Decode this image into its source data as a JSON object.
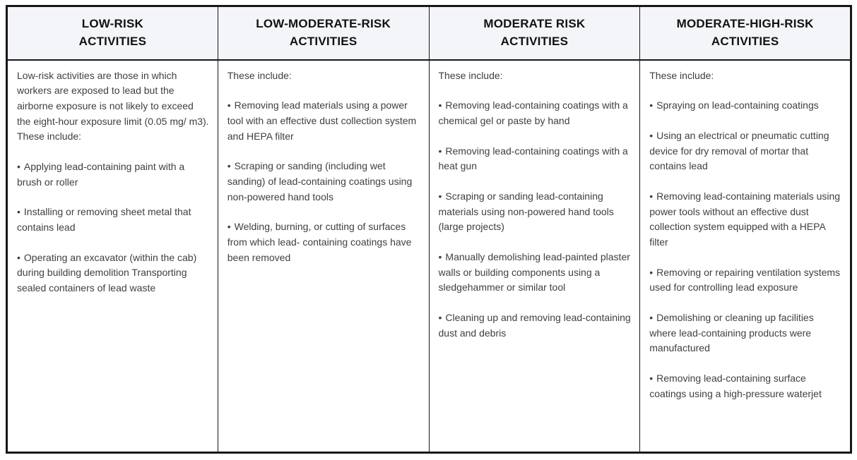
{
  "glyphs": {
    "bullet": "•"
  },
  "colors": {
    "header_bg": "#f4f5f8",
    "border": "#17171a",
    "header_text": "#111214",
    "body_text": "#3d3f42",
    "page_bg": "#ffffff"
  },
  "table": {
    "columns": [
      {
        "header_line1": "LOW-RISK",
        "header_line2": "ACTIVITIES",
        "intro": "Low-risk activities are those in which workers are exposed to lead but the airborne exposure is not likely to exceed the eight-hour exposure limit (0.05 mg/ m3). These include:",
        "bullets": [
          "Applying lead-containing paint with a brush or roller",
          "Installing or removing sheet metal that contains lead",
          "Operating an excavator (within the cab) during building demolition Transporting sealed containers of lead waste"
        ]
      },
      {
        "header_line1": "LOW-MODERATE-RISK",
        "header_line2": "ACTIVITIES",
        "intro": "These include:",
        "bullets": [
          "Removing lead materials using a power tool with an effective dust collection system and HEPA filter",
          "Scraping or sanding (including wet sanding) of lead-containing coatings using non-powered hand tools",
          "Welding, burning, or cutting of surfaces from which lead- containing coatings have been removed"
        ]
      },
      {
        "header_line1": "MODERATE RISK",
        "header_line2": "ACTIVITIES",
        "intro": "These include:",
        "bullets": [
          "Removing lead-containing coatings with a chemical gel or paste by hand",
          "Removing lead-containing coatings with a heat gun",
          "Scraping or sanding lead-containing materials using non-powered hand tools (large projects)",
          "Manually demolishing lead-painted plaster walls or building components using a sledgehammer or similar tool",
          "Cleaning up and removing lead-containing dust and debris"
        ]
      },
      {
        "header_line1": "MODERATE-HIGH-RISK",
        "header_line2": "ACTIVITIES",
        "intro": "These include:",
        "bullets": [
          "Spraying on lead-containing coatings",
          "Using an electrical or pneumatic cutting device for dry removal of mortar that contains lead",
          "Removing lead-containing materials using power tools without an effective dust collection system equipped with a HEPA filter",
          "Removing or repairing ventilation systems used for controlling lead exposure",
          "Demolishing or cleaning up facilities where lead-containing products were manufactured",
          "Removing lead-containing surface coatings using a high-pressure waterjet"
        ]
      }
    ]
  }
}
